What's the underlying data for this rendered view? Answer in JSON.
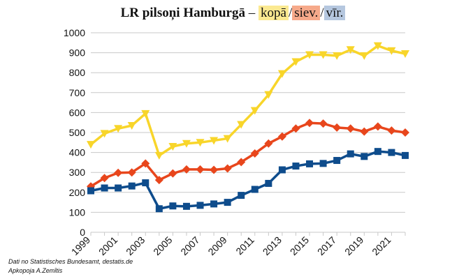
{
  "chart_data": {
    "type": "line",
    "title": {
      "prefix": "LR pilsoņi Hamburgā",
      "dash": "–",
      "slash": "/"
    },
    "x": [
      1999,
      2000,
      2001,
      2002,
      2003,
      2004,
      2005,
      2006,
      2007,
      2008,
      2009,
      2010,
      2011,
      2012,
      2013,
      2014,
      2015,
      2016,
      2017,
      2018,
      2019,
      2020,
      2021,
      2022
    ],
    "x_tick_labels": [
      "1999",
      "2001",
      "2003",
      "2005",
      "2007",
      "2009",
      "2011",
      "2013",
      "2015",
      "2017",
      "2019",
      "2021"
    ],
    "y_tick_labels": [
      "0",
      "100",
      "200",
      "300",
      "400",
      "500",
      "600",
      "700",
      "800",
      "900",
      "1000"
    ],
    "ylim": [
      0,
      1000
    ],
    "grid": "horizontal",
    "series": [
      {
        "name": "kopā",
        "color": "#f8d52a",
        "tag_bg": "#fbe991",
        "marker": "triangle-down",
        "values": [
          440,
          495,
          520,
          535,
          595,
          385,
          430,
          445,
          450,
          460,
          470,
          540,
          610,
          690,
          795,
          855,
          890,
          890,
          885,
          915,
          885,
          935,
          910,
          895
        ]
      },
      {
        "name": "siev.",
        "color": "#e8461c",
        "tag_bg": "#f6a98a",
        "marker": "diamond",
        "values": [
          230,
          272,
          298,
          300,
          345,
          262,
          295,
          315,
          315,
          313,
          320,
          352,
          395,
          445,
          480,
          520,
          548,
          545,
          525,
          520,
          505,
          530,
          510,
          500
        ]
      },
      {
        "name": "vīr.",
        "color": "#0e4c8c",
        "tag_bg": "#b5c7df",
        "marker": "square",
        "values": [
          208,
          222,
          222,
          232,
          248,
          118,
          132,
          130,
          135,
          142,
          150,
          185,
          215,
          245,
          313,
          332,
          343,
          345,
          360,
          393,
          380,
          405,
          400,
          385
        ]
      }
    ]
  },
  "source": {
    "line1": "Dati no Statistisches Bundesamt, destatis.de",
    "line2": "Apkopoja A.Zemītis"
  }
}
